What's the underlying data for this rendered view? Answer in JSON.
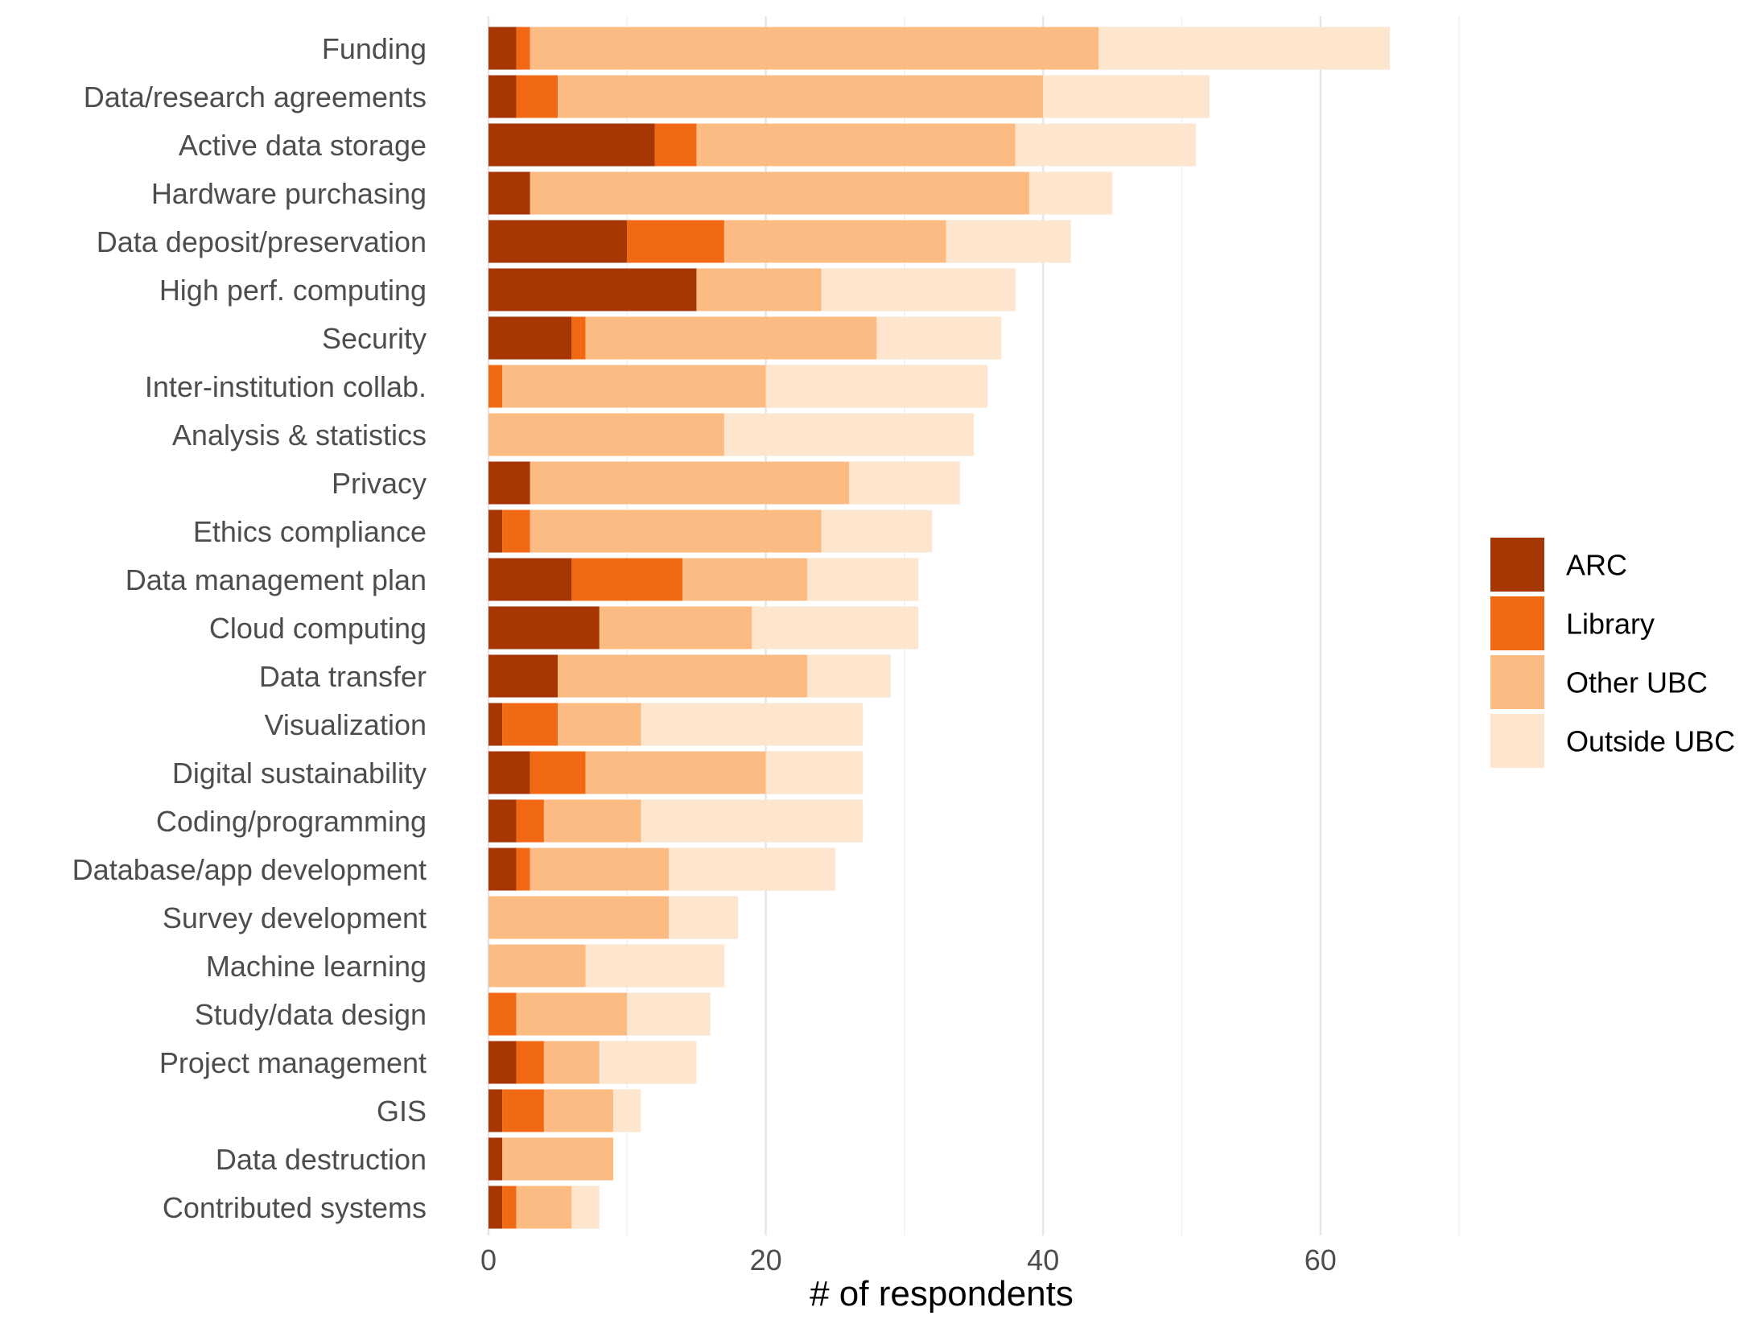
{
  "chart_data": {
    "type": "bar",
    "orientation": "horizontal",
    "stacked": true,
    "xlabel": "# of respondents",
    "ylabel": "",
    "xlim": [
      0,
      75
    ],
    "xticks": [
      0,
      20,
      40,
      60
    ],
    "grid": true,
    "legend_position": "right",
    "categories": [
      "Funding",
      "Data/research agreements",
      "Active data storage",
      "Hardware purchasing",
      "Data deposit/preservation",
      "High perf. computing",
      "Security",
      "Inter-institution collab.",
      "Analysis & statistics",
      "Privacy",
      "Ethics compliance",
      "Data management plan",
      "Cloud computing",
      "Data transfer",
      "Visualization",
      "Digital sustainability",
      "Coding/programming",
      "Database/app development",
      "Survey development",
      "Machine learning",
      "Study/data design",
      "Project management",
      "GIS",
      "Data destruction",
      "Contributed systems"
    ],
    "series": [
      {
        "name": "ARC",
        "color": "#a63603",
        "values": [
          2,
          2,
          12,
          3,
          10,
          15,
          6,
          0,
          0,
          3,
          1,
          6,
          8,
          5,
          1,
          3,
          2,
          2,
          0,
          0,
          0,
          2,
          1,
          1,
          1
        ]
      },
      {
        "name": "Library",
        "color": "#f16913",
        "values": [
          1,
          3,
          3,
          0,
          7,
          0,
          1,
          1,
          0,
          0,
          2,
          8,
          0,
          0,
          4,
          4,
          2,
          1,
          0,
          0,
          2,
          2,
          3,
          0,
          1
        ]
      },
      {
        "name": "Other UBC",
        "color": "#fdbb84",
        "values": [
          41,
          35,
          23,
          36,
          16,
          9,
          21,
          19,
          17,
          23,
          21,
          9,
          11,
          18,
          6,
          13,
          7,
          10,
          13,
          7,
          8,
          4,
          5,
          8,
          4
        ]
      },
      {
        "name": "Outside UBC",
        "color": "#fee6ce",
        "values": [
          21,
          12,
          13,
          6,
          9,
          14,
          9,
          16,
          18,
          8,
          8,
          8,
          12,
          6,
          16,
          7,
          16,
          12,
          5,
          10,
          6,
          7,
          2,
          0,
          2
        ]
      }
    ]
  }
}
